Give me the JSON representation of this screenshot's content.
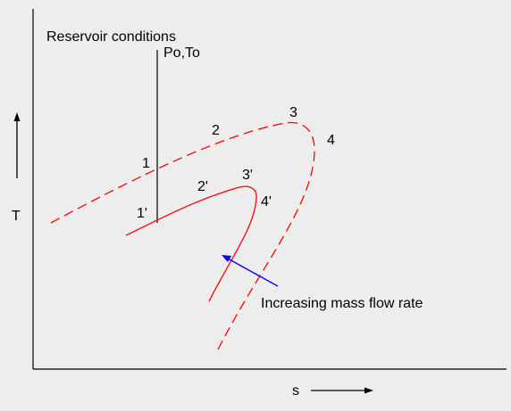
{
  "diagram": {
    "reservoir_label": "Reservoir conditions",
    "reservoir_symbols": "Po,To",
    "y_axis_label": "T",
    "x_axis_label": "s",
    "annotation": "Increasing mass flow rate",
    "outer_curve_points": [
      "1",
      "2",
      "3",
      "4"
    ],
    "inner_curve_points": [
      "1'",
      "2'",
      "3'",
      "4'"
    ],
    "colors": {
      "background": "#ededed",
      "curves": "#ff0000",
      "arrow": "#0000ff",
      "axes": "#000000"
    }
  }
}
